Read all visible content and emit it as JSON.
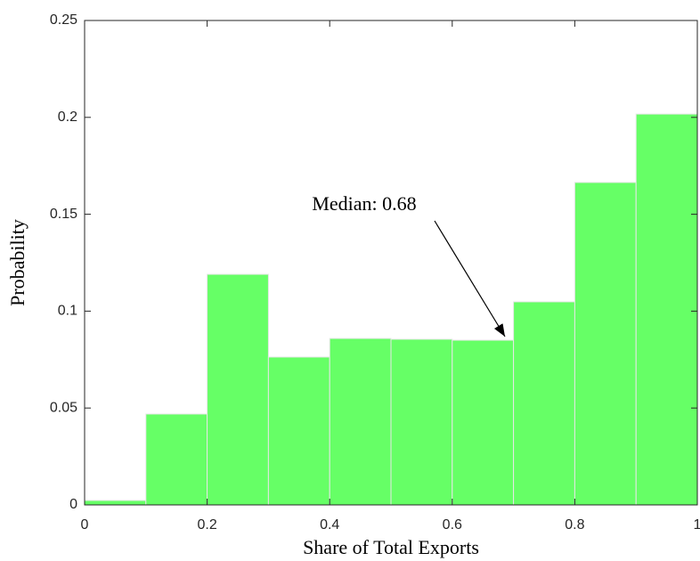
{
  "chart_data": {
    "type": "histogram",
    "xlabel": "Share of Total Exports",
    "ylabel": "Probability",
    "annotation": "Median: 0.68",
    "bins": [
      0,
      0.1,
      0.2,
      0.3,
      0.4,
      0.5,
      0.6,
      0.7,
      0.8,
      0.9,
      1
    ],
    "values": [
      0.0023,
      0.0469,
      0.119,
      0.0763,
      0.0859,
      0.0855,
      0.085,
      0.1048,
      0.1664,
      0.2017
    ],
    "color": "#66ff66",
    "xlim": [
      0,
      1
    ],
    "xticks": [
      0,
      0.2,
      0.4,
      0.6,
      0.8,
      1
    ],
    "ylim": [
      0,
      0.25
    ],
    "yticks": [
      0,
      0.05,
      0.1,
      0.15,
      0.2,
      0.25
    ]
  }
}
